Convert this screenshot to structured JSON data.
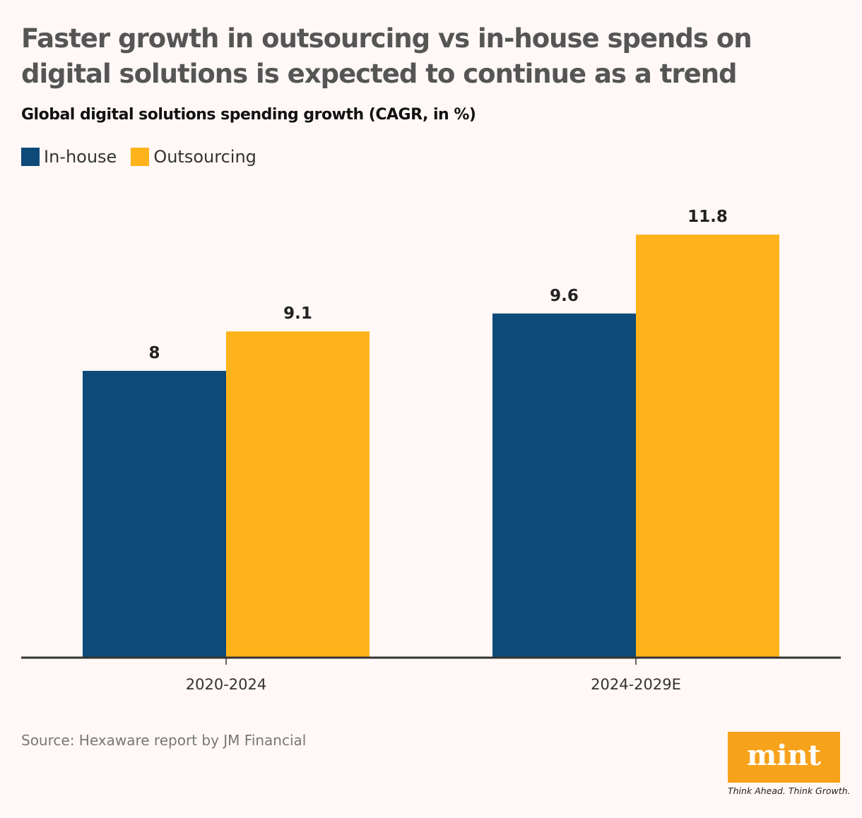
{
  "title": "Faster growth in outsourcing vs in-house spends on digital solutions is expected to continue as a trend",
  "source": "Source: Hexaware report by JM Financial",
  "logo": {
    "text": "mint",
    "tagline": "Think Ahead. Think Growth.",
    "color": "#f7a21b"
  },
  "chart_data": {
    "type": "bar",
    "title": "Global digital solutions spending growth (CAGR, in %)",
    "categories": [
      "2020-2024",
      "2024-2029E"
    ],
    "series": [
      {
        "name": "In-house",
        "values": [
          8,
          9.6
        ],
        "color": "#0e4a78"
      },
      {
        "name": "Outsourcing",
        "values": [
          9.1,
          11.8
        ],
        "color": "#fdb319"
      }
    ],
    "data_labels": [
      [
        "8",
        "9.1"
      ],
      [
        "9.6",
        "11.8"
      ]
    ],
    "ylim": [
      0,
      12.5
    ],
    "grid": false,
    "legend": "top-left"
  }
}
